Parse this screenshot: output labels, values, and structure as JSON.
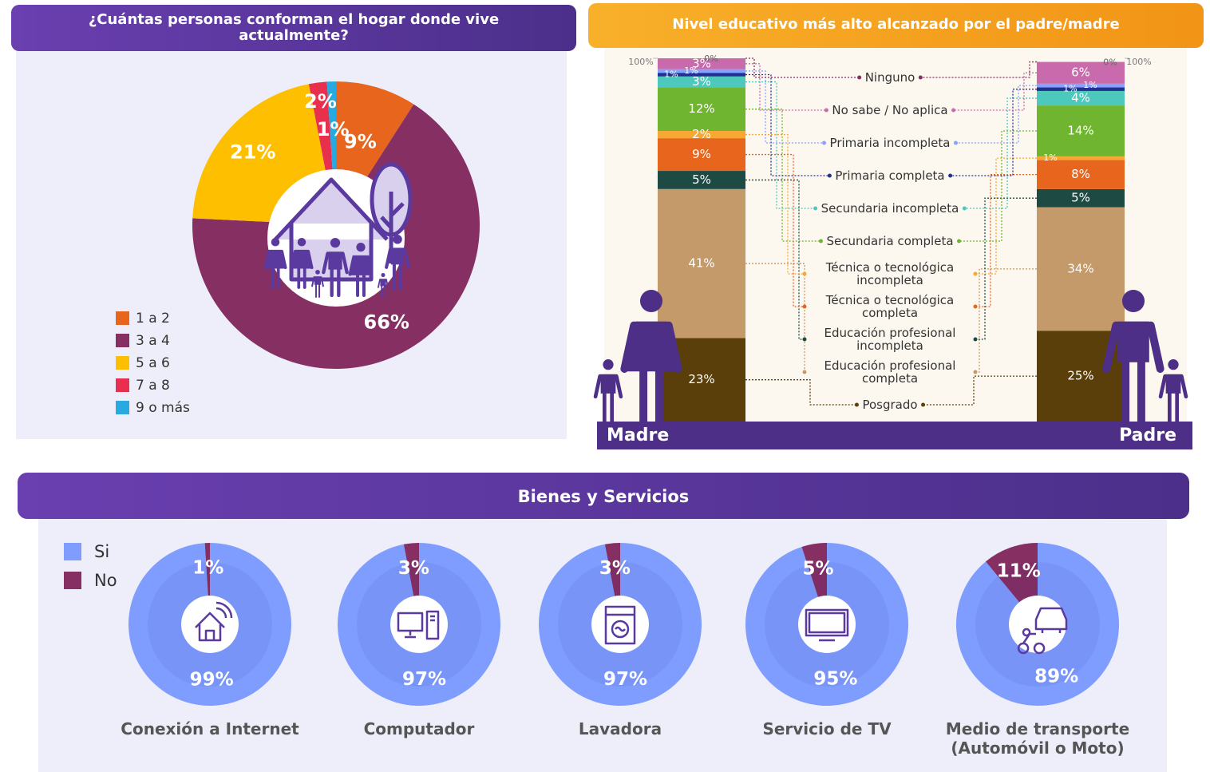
{
  "chart_data": [
    {
      "type": "pie",
      "title": "¿Cuántas personas conforman el hogar donde vive actualmente?",
      "categories": [
        "1 a 2",
        "3 a 4",
        "5 a 6",
        "7 a 8",
        "9 o más"
      ],
      "values": [
        9,
        66,
        21,
        2,
        1
      ],
      "value_labels": [
        "9%",
        "66%",
        "21%",
        "2%",
        "1%"
      ],
      "colors": [
        "#e8651e",
        "#862f62",
        "#fdbf00",
        "#e8304e",
        "#28a9e0"
      ]
    },
    {
      "type": "stacked-bar",
      "title": "Nivel educativo más alto alcanzado por el padre/madre",
      "categories": [
        "Madre",
        "Padre"
      ],
      "ylim": [
        0,
        100
      ],
      "yticks": [
        {
          "value": 100,
          "label": "100%"
        }
      ],
      "series": [
        {
          "name": "Posgrado",
          "color": "#5a3f0a",
          "values": [
            23,
            25
          ],
          "value_labels": [
            "23%",
            "25%"
          ]
        },
        {
          "name": "Educación profesional completa",
          "color": "#c59a6a",
          "values": [
            41,
            34
          ],
          "value_labels": [
            "41%",
            "34%"
          ]
        },
        {
          "name": "Educación profesional incompleta",
          "color": "#1e4a44",
          "values": [
            5,
            5
          ],
          "value_labels": [
            "5%",
            "5%"
          ]
        },
        {
          "name": "Técnica o tecnológica completa",
          "color": "#e8651e",
          "values": [
            9,
            8
          ],
          "value_labels": [
            "9%",
            "8%"
          ]
        },
        {
          "name": "Técnica o tecnológica incompleta",
          "color": "#f7a733",
          "values": [
            2,
            1
          ],
          "value_labels": [
            "2%",
            "1%"
          ]
        },
        {
          "name": "Secundaria completa",
          "color": "#6fb52f",
          "values": [
            12,
            14
          ],
          "value_labels": [
            "12%",
            "14%"
          ]
        },
        {
          "name": "Secundaria incompleta",
          "color": "#4cc8bd",
          "values": [
            3,
            4
          ],
          "value_labels": [
            "3%",
            "4%"
          ]
        },
        {
          "name": "Primaria completa",
          "color": "#22318f",
          "values": [
            1,
            1
          ],
          "value_labels": [
            "1%",
            "1%"
          ]
        },
        {
          "name": "Primaria incompleta",
          "color": "#86a2ff",
          "values": [
            1,
            1
          ],
          "value_labels": [
            "1%",
            "1%"
          ]
        },
        {
          "name": "No sabe / No aplica",
          "color": "#c86aab",
          "values": [
            3,
            6
          ],
          "value_labels": [
            "3%",
            "6%"
          ]
        },
        {
          "name": "Ninguno",
          "color": "#862f62",
          "values": [
            0,
            0
          ],
          "value_labels": [
            "0%",
            "0%"
          ]
        }
      ]
    },
    {
      "type": "donut-multiples",
      "title": "Bienes y Servicios",
      "categories": [
        "Conexión a Internet",
        "Computador",
        "Lavadora",
        "Servicio de TV",
        "Medio de transporte (Automóvil o Moto)"
      ],
      "series": [
        {
          "name": "Si",
          "color": "#7f9dff",
          "values": [
            99,
            97,
            97,
            95,
            89
          ],
          "value_labels": [
            "99%",
            "97%",
            "97%",
            "95%",
            "89%"
          ]
        },
        {
          "name": "No",
          "color": "#862f62",
          "values": [
            1,
            3,
            3,
            5,
            11
          ],
          "value_labels": [
            "1%",
            "3%",
            "3%",
            "5%",
            "11%"
          ]
        }
      ]
    }
  ]
}
